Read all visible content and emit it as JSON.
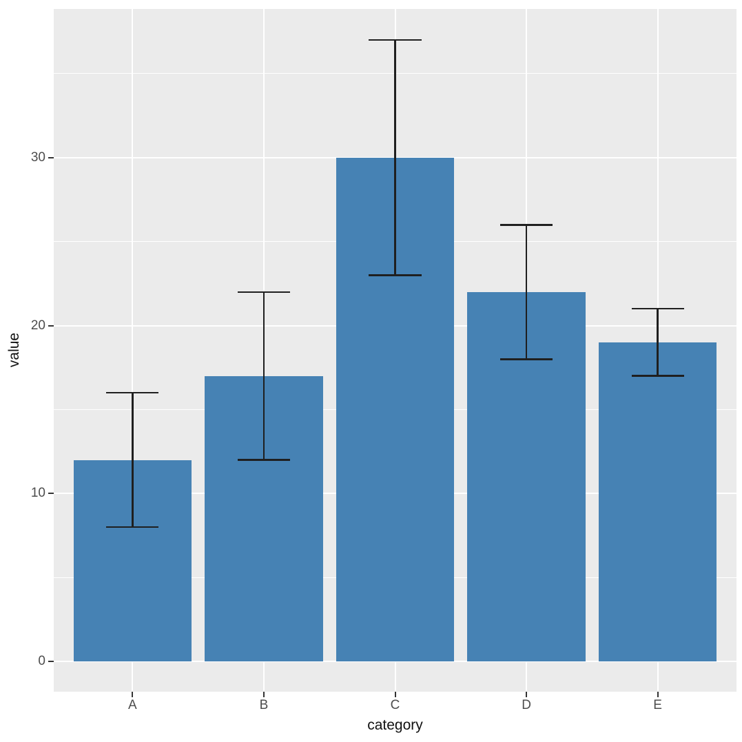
{
  "chart_data": {
    "type": "bar",
    "title": "",
    "xlabel": "category",
    "ylabel": "value",
    "categories": [
      "A",
      "B",
      "C",
      "D",
      "E"
    ],
    "values": [
      12,
      17,
      30,
      22,
      19
    ],
    "error_bars": {
      "low": [
        8,
        12,
        23,
        18,
        17
      ],
      "high": [
        16,
        22,
        37,
        26,
        21
      ]
    },
    "y_major_ticks": [
      0,
      10,
      20,
      30
    ],
    "y_minor_ticks": [
      5,
      15,
      25,
      35
    ],
    "ylim": [
      -1.8,
      38.85
    ],
    "grid": true,
    "legend": "none",
    "style": {
      "bar_fill": "#4682B4",
      "errorbar_color": "#1F1F1F",
      "panel_background": "#EBEBEB",
      "gridline_color": "#FFFFFF",
      "tick_mark_color": "#333333",
      "tick_label_color": "#4D4D4D",
      "axis_title_color": "#111111",
      "figure_background": "#FFFFFF"
    }
  }
}
